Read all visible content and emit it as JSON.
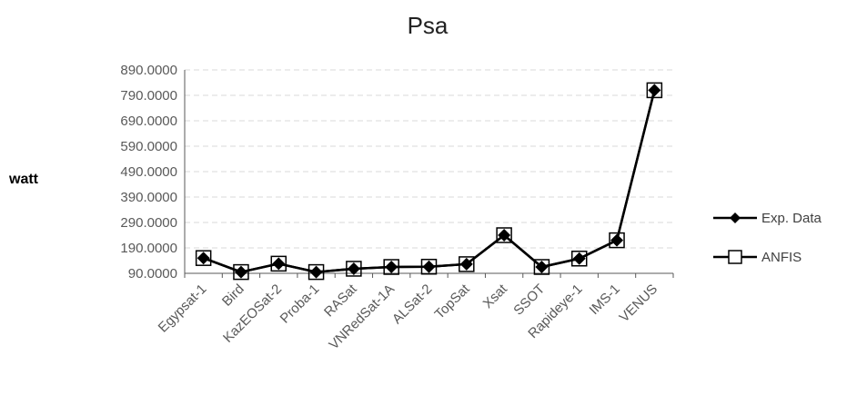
{
  "chart_data": {
    "type": "line",
    "title": "Psa",
    "xlabel": "",
    "ylabel": "watt",
    "ylim": [
      90,
      890
    ],
    "yticks": [
      "890.0000",
      "790.0000",
      "690.0000",
      "590.0000",
      "490.0000",
      "390.0000",
      "290.0000",
      "190.0000",
      "90.0000"
    ],
    "grid": true,
    "legend_position": "right",
    "categories": [
      "Egypsat-1",
      "Bird",
      "KazEOSat-2",
      "Proba-1",
      "RASat",
      "VNRedSat-1A",
      "ALSat-2",
      "TopSat",
      "Xsat",
      "SSOT",
      "Rapideye-1",
      "IMS-1",
      "VENUS"
    ],
    "series": [
      {
        "name": "Exp. Data",
        "marker": "diamond",
        "color": "#000000",
        "values": [
          150,
          95,
          128,
          95,
          108,
          115,
          116,
          126,
          240,
          115,
          148,
          220,
          810
        ]
      },
      {
        "name": "ANFIS",
        "marker": "square-open",
        "color": "#000000",
        "values": [
          150,
          95,
          128,
          95,
          108,
          115,
          116,
          126,
          240,
          115,
          148,
          220,
          810
        ]
      }
    ]
  }
}
